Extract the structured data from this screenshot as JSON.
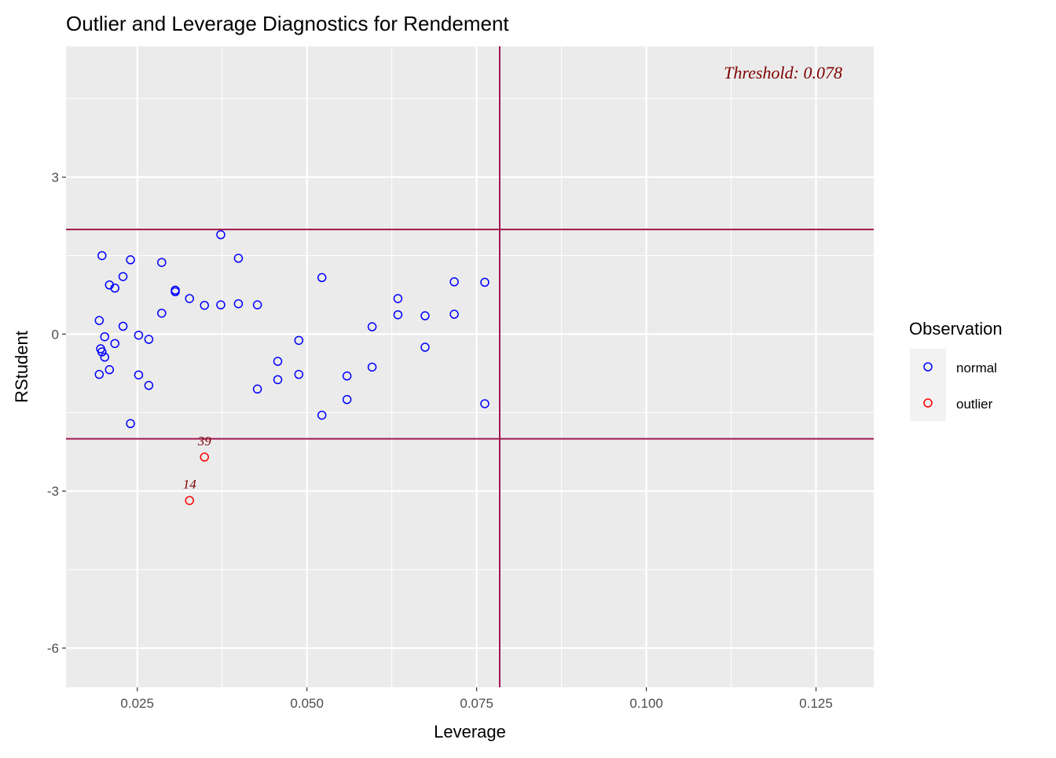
{
  "chart_data": {
    "type": "scatter",
    "title": "Outlier and Leverage Diagnostics for Rendement",
    "xlabel": "Leverage",
    "ylabel": "RStudent",
    "xlim": [
      0.0145,
      0.1335
    ],
    "ylim": [
      -6.75,
      5.5
    ],
    "x_ticks": [
      0.025,
      0.05,
      0.075,
      0.1,
      0.125
    ],
    "x_tick_labels": [
      "0.025",
      "0.050",
      "0.075",
      "0.100",
      "0.125"
    ],
    "y_ticks": [
      3,
      0,
      -3,
      -6
    ],
    "y_tick_labels": [
      "3",
      "0",
      "-3",
      "-6"
    ],
    "grid": true,
    "threshold_leverage": 0.0784,
    "threshold_label": "Threshold: 0.078",
    "rstudent_limits": [
      2,
      -2
    ],
    "reference_line_color": "#A3174F",
    "threshold_text_color": "#7F0000",
    "legend": {
      "title": "Observation",
      "position": "right",
      "entries": [
        {
          "label": "normal",
          "color": "#0000FF"
        },
        {
          "label": "outlier",
          "color": "#FF0000"
        }
      ]
    },
    "series": [
      {
        "name": "normal",
        "color": "#0000FF",
        "points": [
          [
            0.0198,
            1.5
          ],
          [
            0.024,
            1.42
          ],
          [
            0.0286,
            1.37
          ],
          [
            0.0373,
            1.9
          ],
          [
            0.0399,
            1.45
          ],
          [
            0.0209,
            0.94
          ],
          [
            0.0217,
            0.88
          ],
          [
            0.0229,
            1.1
          ],
          [
            0.0306,
            0.84
          ],
          [
            0.0306,
            0.81
          ],
          [
            0.0327,
            0.68
          ],
          [
            0.0349,
            0.55
          ],
          [
            0.0373,
            0.56
          ],
          [
            0.0399,
            0.58
          ],
          [
            0.0427,
            0.56
          ],
          [
            0.0286,
            0.4
          ],
          [
            0.0194,
            0.26
          ],
          [
            0.0229,
            0.15
          ],
          [
            0.0252,
            -0.02
          ],
          [
            0.0202,
            -0.05
          ],
          [
            0.0267,
            -0.1
          ],
          [
            0.0217,
            -0.18
          ],
          [
            0.0196,
            -0.28
          ],
          [
            0.0198,
            -0.34
          ],
          [
            0.0202,
            -0.44
          ],
          [
            0.0209,
            -0.68
          ],
          [
            0.0194,
            -0.77
          ],
          [
            0.0252,
            -0.78
          ],
          [
            0.0267,
            -0.98
          ],
          [
            0.024,
            -1.71
          ],
          [
            0.0522,
            1.08
          ],
          [
            0.0488,
            -0.12
          ],
          [
            0.0457,
            -0.52
          ],
          [
            0.0488,
            -0.77
          ],
          [
            0.0457,
            -0.87
          ],
          [
            0.0427,
            -1.05
          ],
          [
            0.0522,
            -1.55
          ],
          [
            0.0559,
            -0.8
          ],
          [
            0.0559,
            -1.25
          ],
          [
            0.0596,
            0.14
          ],
          [
            0.0596,
            -0.63
          ],
          [
            0.0634,
            0.68
          ],
          [
            0.0634,
            0.37
          ],
          [
            0.0674,
            0.35
          ],
          [
            0.0674,
            -0.25
          ],
          [
            0.0717,
            1.0
          ],
          [
            0.0717,
            0.38
          ],
          [
            0.0762,
            0.99
          ],
          [
            0.0762,
            -1.33
          ]
        ]
      },
      {
        "name": "outlier",
        "color": "#FF0000",
        "points": [
          [
            0.0349,
            -2.35
          ],
          [
            0.0327,
            -3.18
          ]
        ],
        "labels": [
          "39",
          "14"
        ]
      }
    ]
  }
}
